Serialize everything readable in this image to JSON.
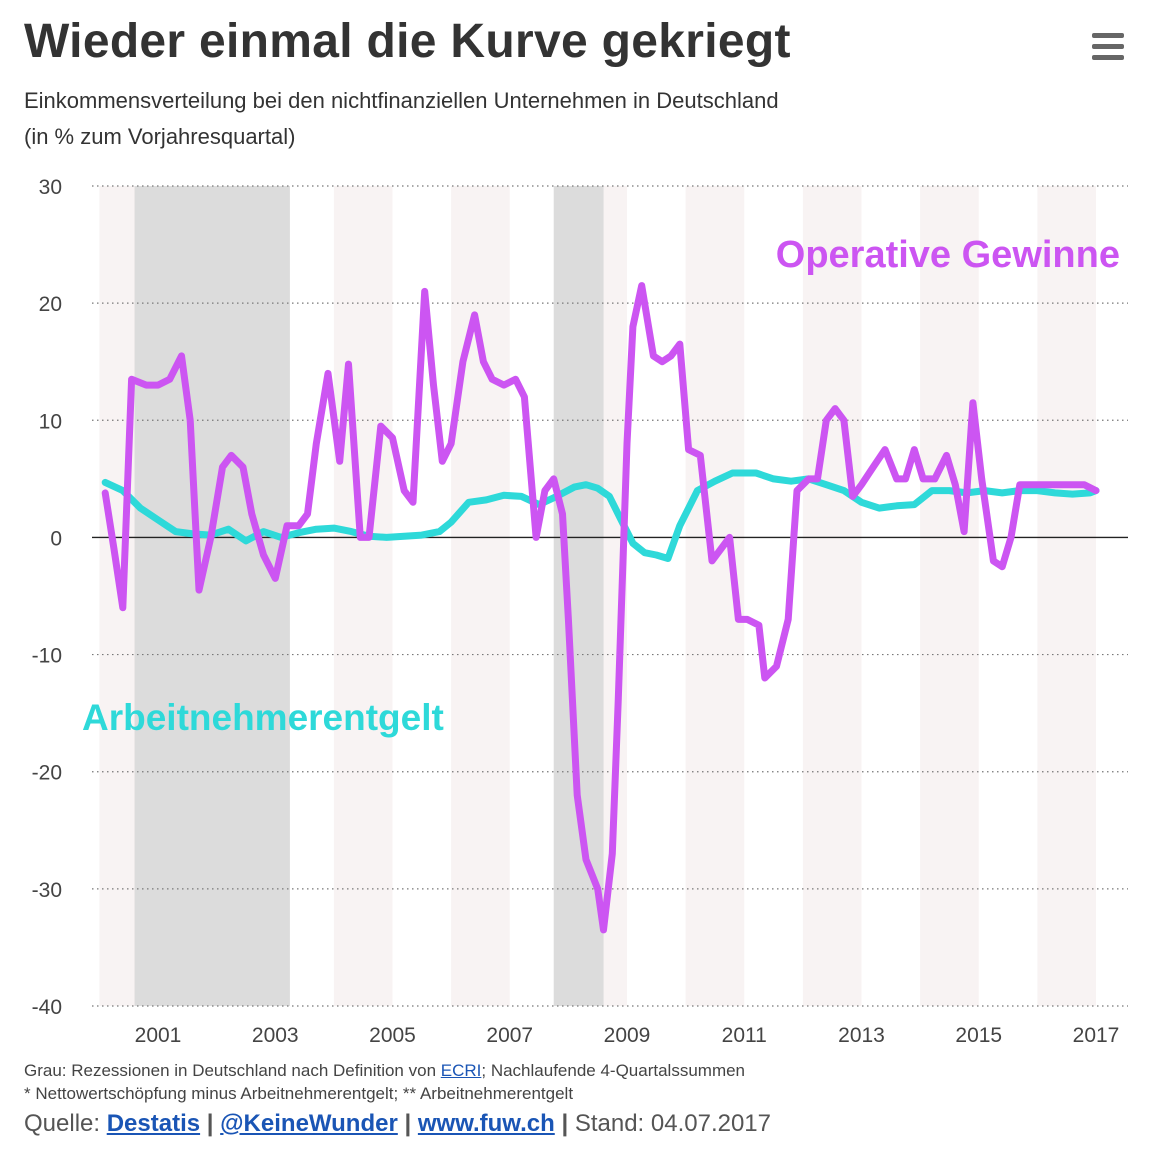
{
  "header": {
    "title": "Wieder einmal die Kurve gekriegt",
    "subtitle_line1": "Einkommensverteilung bei den nichtfinanziellen Unternehmen in Deutschland",
    "subtitle_line2": "(in % zum Vorjahresquartal)",
    "menu_icon": "hamburger-menu-icon"
  },
  "chart_data": {
    "type": "line",
    "title": "Wieder einmal die Kurve gekriegt",
    "ylabel": "in % zum Vorjahresquartal",
    "xlabel": "",
    "ylim": [
      -40,
      30
    ],
    "yticks": [
      30,
      20,
      10,
      0,
      -10,
      -20,
      -30,
      -40
    ],
    "ytick_labels": [
      "30",
      "20",
      "10",
      "0",
      "-10",
      "-20",
      "-30",
      "-40"
    ],
    "xlim": [
      2000.0,
      2017.5
    ],
    "xticks": [
      2001,
      2003,
      2005,
      2007,
      2009,
      2011,
      2013,
      2015,
      2017
    ],
    "xtick_labels": [
      "2001",
      "2003",
      "2005",
      "2007",
      "2009",
      "2011",
      "2013",
      "2015",
      "2017"
    ],
    "grid": "horizontal dotted",
    "recessions": [
      [
        2000.6,
        2003.25
      ],
      [
        2007.75,
        2008.6
      ]
    ],
    "series": [
      {
        "name": "Operative Gewinne",
        "color": "#cc55f2",
        "x": [
          2000.1,
          2000.25,
          2000.4,
          2000.55,
          2000.8,
          2001.0,
          2001.2,
          2001.4,
          2001.55,
          2001.7,
          2001.9,
          2002.1,
          2002.25,
          2002.45,
          2002.6,
          2002.8,
          2003.0,
          2003.2,
          2003.4,
          2003.55,
          2003.7,
          2003.9,
          2004.1,
          2004.25,
          2004.45,
          2004.6,
          2004.8,
          2005.0,
          2005.2,
          2005.35,
          2005.55,
          2005.7,
          2005.85,
          2006.0,
          2006.2,
          2006.4,
          2006.55,
          2006.7,
          2006.9,
          2007.1,
          2007.25,
          2007.45,
          2007.6,
          2007.75,
          2007.9,
          2008.0,
          2008.15,
          2008.3,
          2008.5,
          2008.6,
          2008.75,
          2008.85,
          2009.0,
          2009.1,
          2009.25,
          2009.45,
          2009.6,
          2009.75,
          2009.9,
          2010.05,
          2010.25,
          2010.45,
          2010.6,
          2010.75,
          2010.9,
          2011.05,
          2011.25,
          2011.35,
          2011.55,
          2011.75,
          2011.9,
          2012.1,
          2012.25,
          2012.4,
          2012.55,
          2012.7,
          2012.85,
          2013.0,
          2013.2,
          2013.4,
          2013.6,
          2013.75,
          2013.9,
          2014.05,
          2014.25,
          2014.45,
          2014.6,
          2014.75,
          2014.9,
          2015.05,
          2015.25,
          2015.4,
          2015.55,
          2015.7,
          2015.85,
          2016.05,
          2016.2,
          2016.35,
          2016.5,
          2016.65,
          2016.8,
          2017.0
        ],
        "values": [
          3.8,
          -1.0,
          -6.0,
          13.5,
          13.0,
          13.0,
          13.5,
          15.5,
          10.0,
          -4.5,
          0.0,
          6.0,
          7.0,
          6.0,
          2.0,
          -1.5,
          -3.5,
          1.0,
          1.0,
          2.0,
          8.0,
          14.0,
          6.5,
          14.8,
          0.0,
          0.0,
          9.5,
          8.5,
          4.0,
          3.0,
          21.0,
          13.0,
          6.5,
          8.0,
          15.0,
          19.0,
          15.0,
          13.5,
          13.0,
          13.5,
          12.0,
          0.0,
          4.0,
          5.0,
          2.0,
          -7.0,
          -22.0,
          -27.5,
          -30.0,
          -33.5,
          -27.0,
          -14.0,
          8.0,
          18.0,
          21.5,
          15.5,
          15.0,
          15.5,
          16.5,
          7.5,
          7.0,
          -2.0,
          -1.0,
          0.0,
          -7.0,
          -7.0,
          -7.5,
          -12.0,
          -11.0,
          -7.0,
          4.0,
          5.0,
          5.0,
          10.0,
          11.0,
          10.0,
          3.5,
          4.5,
          6.0,
          7.5,
          5.0,
          5.0,
          7.5,
          5.0,
          5.0,
          7.0,
          4.5,
          0.5,
          11.5,
          5.0,
          -2.0,
          -2.5,
          0.0,
          4.5,
          4.5,
          4.5,
          4.5,
          4.5,
          4.5,
          4.5,
          4.5,
          4.0
        ],
        "label": "Operative Gewinne"
      },
      {
        "name": "Arbeitnehmerentgelt",
        "color": "#2ed9d9",
        "x": [
          2000.1,
          2000.4,
          2000.7,
          2001.0,
          2001.3,
          2001.6,
          2001.9,
          2002.2,
          2002.5,
          2002.8,
          2003.1,
          2003.4,
          2003.7,
          2004.0,
          2004.3,
          2004.6,
          2004.9,
          2005.2,
          2005.5,
          2005.8,
          2006.0,
          2006.3,
          2006.6,
          2006.9,
          2007.2,
          2007.5,
          2007.8,
          2008.1,
          2008.3,
          2008.5,
          2008.7,
          2008.9,
          2009.1,
          2009.3,
          2009.5,
          2009.7,
          2009.9,
          2010.2,
          2010.5,
          2010.8,
          2011.0,
          2011.2,
          2011.5,
          2011.8,
          2012.1,
          2012.4,
          2012.7,
          2013.0,
          2013.3,
          2013.6,
          2013.9,
          2014.2,
          2014.5,
          2014.8,
          2015.1,
          2015.4,
          2015.7,
          2016.0,
          2016.3,
          2016.6,
          2016.9,
          2017.0
        ],
        "values": [
          4.7,
          4.0,
          2.5,
          1.5,
          0.5,
          0.3,
          0.2,
          0.7,
          -0.3,
          0.5,
          0.0,
          0.4,
          0.7,
          0.8,
          0.5,
          0.1,
          0.0,
          0.1,
          0.2,
          0.5,
          1.3,
          3.0,
          3.2,
          3.6,
          3.5,
          2.8,
          3.5,
          4.3,
          4.5,
          4.2,
          3.5,
          1.5,
          -0.5,
          -1.3,
          -1.5,
          -1.8,
          1.0,
          4.0,
          4.8,
          5.5,
          5.5,
          5.5,
          5.0,
          4.8,
          5.0,
          4.5,
          4.0,
          3.0,
          2.5,
          2.7,
          2.8,
          4.0,
          4.0,
          3.8,
          4.0,
          3.8,
          4.0,
          4.0,
          3.8,
          3.7,
          3.8,
          4.0
        ],
        "label": "Arbeitnehmerentgelt"
      }
    ]
  },
  "footer": {
    "note1_prefix": "Grau: Rezessionen in Deutschland nach Definition von ",
    "note1_link": "ECRI",
    "note1_suffix": "; Nachlaufende 4-Quartalssummen",
    "note2": "* Nettowertschöpfung minus Arbeitnehmerentgelt; ** Arbeitnehmerentgelt",
    "source_label": "Quelle:",
    "source_link1": "Destatis",
    "source_link2": "@KeineWunder",
    "source_link3": "www.fuw.ch",
    "separator": "|",
    "stand_label": "Stand: 04.07.2017"
  }
}
